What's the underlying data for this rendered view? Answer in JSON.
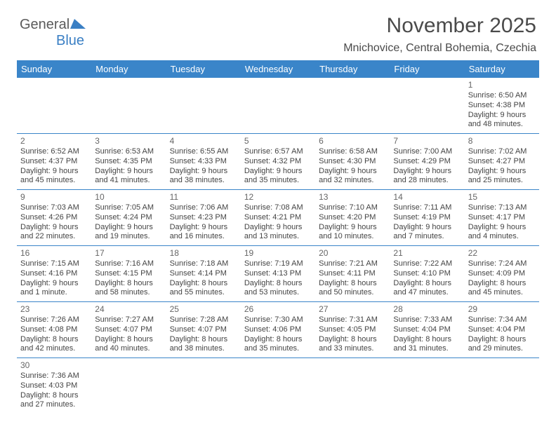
{
  "logo": {
    "part1": "General",
    "part2": "Blue"
  },
  "header": {
    "title": "November 2025",
    "location": "Mnichovice, Central Bohemia, Czechia"
  },
  "colors": {
    "header_bg": "#3a85c9",
    "header_text": "#ffffff",
    "border": "#3a85c9",
    "text": "#444444",
    "title": "#4a4a4a",
    "logo_gray": "#5b5b5b",
    "logo_blue": "#3a7fc4"
  },
  "weekdays": [
    "Sunday",
    "Monday",
    "Tuesday",
    "Wednesday",
    "Thursday",
    "Friday",
    "Saturday"
  ],
  "weeks": [
    [
      null,
      null,
      null,
      null,
      null,
      null,
      {
        "day": "1",
        "sunrise": "Sunrise: 6:50 AM",
        "sunset": "Sunset: 4:38 PM",
        "daylight1": "Daylight: 9 hours",
        "daylight2": "and 48 minutes."
      }
    ],
    [
      {
        "day": "2",
        "sunrise": "Sunrise: 6:52 AM",
        "sunset": "Sunset: 4:37 PM",
        "daylight1": "Daylight: 9 hours",
        "daylight2": "and 45 minutes."
      },
      {
        "day": "3",
        "sunrise": "Sunrise: 6:53 AM",
        "sunset": "Sunset: 4:35 PM",
        "daylight1": "Daylight: 9 hours",
        "daylight2": "and 41 minutes."
      },
      {
        "day": "4",
        "sunrise": "Sunrise: 6:55 AM",
        "sunset": "Sunset: 4:33 PM",
        "daylight1": "Daylight: 9 hours",
        "daylight2": "and 38 minutes."
      },
      {
        "day": "5",
        "sunrise": "Sunrise: 6:57 AM",
        "sunset": "Sunset: 4:32 PM",
        "daylight1": "Daylight: 9 hours",
        "daylight2": "and 35 minutes."
      },
      {
        "day": "6",
        "sunrise": "Sunrise: 6:58 AM",
        "sunset": "Sunset: 4:30 PM",
        "daylight1": "Daylight: 9 hours",
        "daylight2": "and 32 minutes."
      },
      {
        "day": "7",
        "sunrise": "Sunrise: 7:00 AM",
        "sunset": "Sunset: 4:29 PM",
        "daylight1": "Daylight: 9 hours",
        "daylight2": "and 28 minutes."
      },
      {
        "day": "8",
        "sunrise": "Sunrise: 7:02 AM",
        "sunset": "Sunset: 4:27 PM",
        "daylight1": "Daylight: 9 hours",
        "daylight2": "and 25 minutes."
      }
    ],
    [
      {
        "day": "9",
        "sunrise": "Sunrise: 7:03 AM",
        "sunset": "Sunset: 4:26 PM",
        "daylight1": "Daylight: 9 hours",
        "daylight2": "and 22 minutes."
      },
      {
        "day": "10",
        "sunrise": "Sunrise: 7:05 AM",
        "sunset": "Sunset: 4:24 PM",
        "daylight1": "Daylight: 9 hours",
        "daylight2": "and 19 minutes."
      },
      {
        "day": "11",
        "sunrise": "Sunrise: 7:06 AM",
        "sunset": "Sunset: 4:23 PM",
        "daylight1": "Daylight: 9 hours",
        "daylight2": "and 16 minutes."
      },
      {
        "day": "12",
        "sunrise": "Sunrise: 7:08 AM",
        "sunset": "Sunset: 4:21 PM",
        "daylight1": "Daylight: 9 hours",
        "daylight2": "and 13 minutes."
      },
      {
        "day": "13",
        "sunrise": "Sunrise: 7:10 AM",
        "sunset": "Sunset: 4:20 PM",
        "daylight1": "Daylight: 9 hours",
        "daylight2": "and 10 minutes."
      },
      {
        "day": "14",
        "sunrise": "Sunrise: 7:11 AM",
        "sunset": "Sunset: 4:19 PM",
        "daylight1": "Daylight: 9 hours",
        "daylight2": "and 7 minutes."
      },
      {
        "day": "15",
        "sunrise": "Sunrise: 7:13 AM",
        "sunset": "Sunset: 4:17 PM",
        "daylight1": "Daylight: 9 hours",
        "daylight2": "and 4 minutes."
      }
    ],
    [
      {
        "day": "16",
        "sunrise": "Sunrise: 7:15 AM",
        "sunset": "Sunset: 4:16 PM",
        "daylight1": "Daylight: 9 hours",
        "daylight2": "and 1 minute."
      },
      {
        "day": "17",
        "sunrise": "Sunrise: 7:16 AM",
        "sunset": "Sunset: 4:15 PM",
        "daylight1": "Daylight: 8 hours",
        "daylight2": "and 58 minutes."
      },
      {
        "day": "18",
        "sunrise": "Sunrise: 7:18 AM",
        "sunset": "Sunset: 4:14 PM",
        "daylight1": "Daylight: 8 hours",
        "daylight2": "and 55 minutes."
      },
      {
        "day": "19",
        "sunrise": "Sunrise: 7:19 AM",
        "sunset": "Sunset: 4:13 PM",
        "daylight1": "Daylight: 8 hours",
        "daylight2": "and 53 minutes."
      },
      {
        "day": "20",
        "sunrise": "Sunrise: 7:21 AM",
        "sunset": "Sunset: 4:11 PM",
        "daylight1": "Daylight: 8 hours",
        "daylight2": "and 50 minutes."
      },
      {
        "day": "21",
        "sunrise": "Sunrise: 7:22 AM",
        "sunset": "Sunset: 4:10 PM",
        "daylight1": "Daylight: 8 hours",
        "daylight2": "and 47 minutes."
      },
      {
        "day": "22",
        "sunrise": "Sunrise: 7:24 AM",
        "sunset": "Sunset: 4:09 PM",
        "daylight1": "Daylight: 8 hours",
        "daylight2": "and 45 minutes."
      }
    ],
    [
      {
        "day": "23",
        "sunrise": "Sunrise: 7:26 AM",
        "sunset": "Sunset: 4:08 PM",
        "daylight1": "Daylight: 8 hours",
        "daylight2": "and 42 minutes."
      },
      {
        "day": "24",
        "sunrise": "Sunrise: 7:27 AM",
        "sunset": "Sunset: 4:07 PM",
        "daylight1": "Daylight: 8 hours",
        "daylight2": "and 40 minutes."
      },
      {
        "day": "25",
        "sunrise": "Sunrise: 7:28 AM",
        "sunset": "Sunset: 4:07 PM",
        "daylight1": "Daylight: 8 hours",
        "daylight2": "and 38 minutes."
      },
      {
        "day": "26",
        "sunrise": "Sunrise: 7:30 AM",
        "sunset": "Sunset: 4:06 PM",
        "daylight1": "Daylight: 8 hours",
        "daylight2": "and 35 minutes."
      },
      {
        "day": "27",
        "sunrise": "Sunrise: 7:31 AM",
        "sunset": "Sunset: 4:05 PM",
        "daylight1": "Daylight: 8 hours",
        "daylight2": "and 33 minutes."
      },
      {
        "day": "28",
        "sunrise": "Sunrise: 7:33 AM",
        "sunset": "Sunset: 4:04 PM",
        "daylight1": "Daylight: 8 hours",
        "daylight2": "and 31 minutes."
      },
      {
        "day": "29",
        "sunrise": "Sunrise: 7:34 AM",
        "sunset": "Sunset: 4:04 PM",
        "daylight1": "Daylight: 8 hours",
        "daylight2": "and 29 minutes."
      }
    ],
    [
      {
        "day": "30",
        "sunrise": "Sunrise: 7:36 AM",
        "sunset": "Sunset: 4:03 PM",
        "daylight1": "Daylight: 8 hours",
        "daylight2": "and 27 minutes."
      },
      null,
      null,
      null,
      null,
      null,
      null
    ]
  ]
}
